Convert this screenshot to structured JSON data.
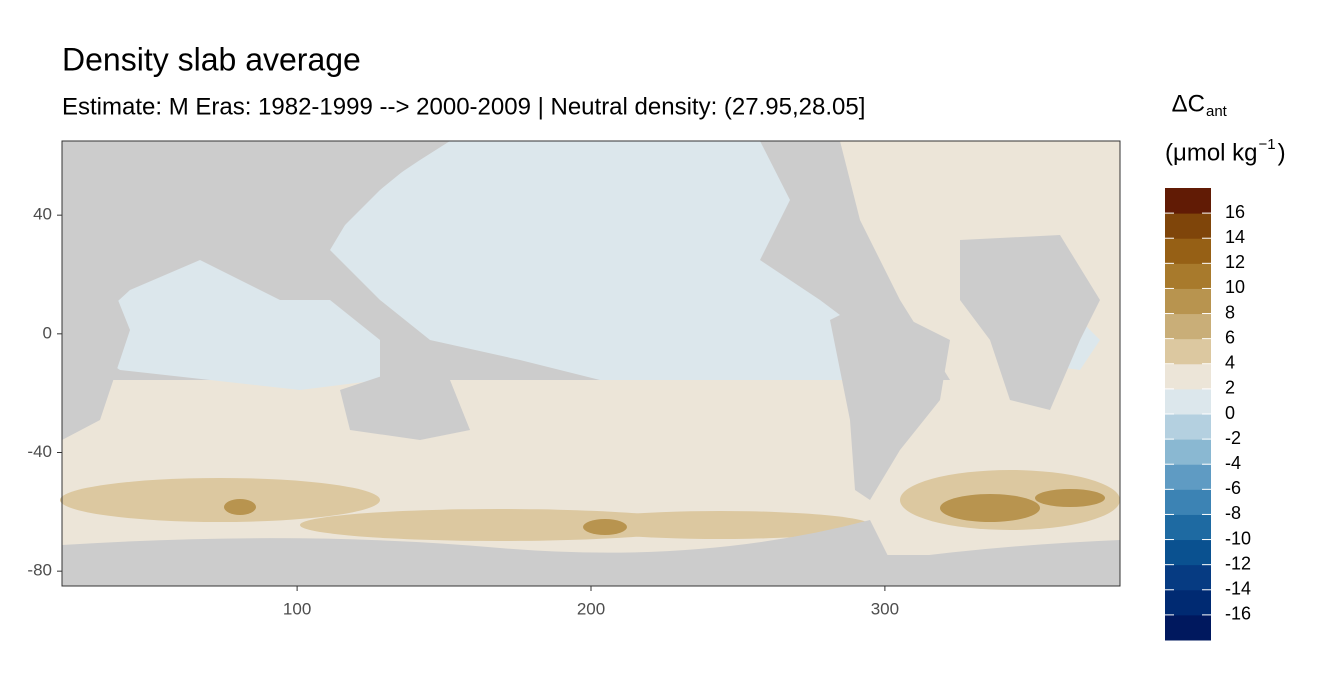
{
  "chart_data": {
    "type": "map",
    "title": "Density slab average",
    "subtitle": "Estimate: M Eras: 1982-1999 --> 2000-2009 | Neutral density: (27.95,28.05]",
    "xlim": [
      20,
      380
    ],
    "xticks": [
      100,
      200,
      300
    ],
    "ylim": [
      -85,
      65
    ],
    "yticks": [
      40,
      0,
      -40,
      -80
    ],
    "legend": {
      "title": "ΔC",
      "title_sub": "ant",
      "unit": "(μmol kg",
      "unit_sup": "−1",
      "unit_close": ")",
      "lim": [
        -18,
        18
      ],
      "ticks": [
        -16,
        -14,
        -12,
        -10,
        -8,
        -6,
        -4,
        -2,
        0,
        2,
        4,
        6,
        8,
        10,
        12,
        14,
        16
      ],
      "colors": [
        "#00185e",
        "#002a72",
        "#063b82",
        "#0a5190",
        "#1e6aa2",
        "#3c83b4",
        "#5f9bc3",
        "#8ab8d2",
        "#b4d0e0",
        "#dce7ec",
        "#ece5d8",
        "#dcc8a0",
        "#c9ae78",
        "#b8944f",
        "#a87a2c",
        "#966015",
        "#7f450a",
        "#611b05"
      ]
    }
  }
}
